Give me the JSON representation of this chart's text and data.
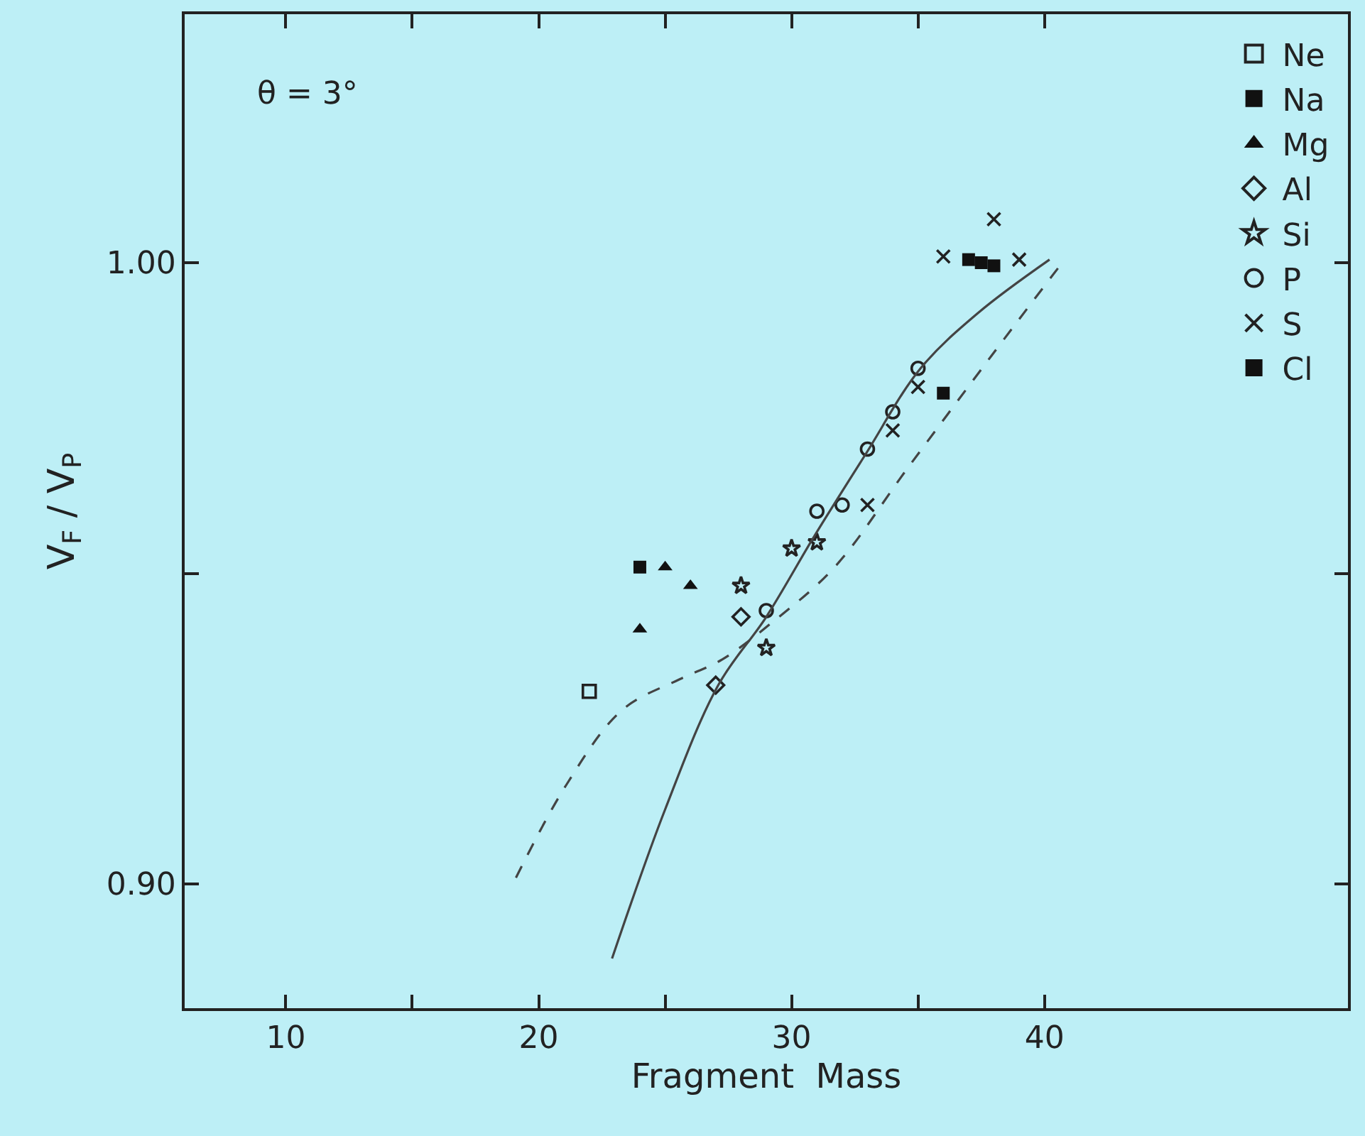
{
  "chart_data": {
    "type": "scatter",
    "xlabel": "Fragment  Mass",
    "ylabel": "V$_{F}$ / V$_{P}$",
    "annotations": [
      "θ = 3°"
    ],
    "xlim": [
      6,
      52
    ],
    "xticks": [
      10,
      {
        "value": 15,
        "label": null
      },
      20,
      {
        "value": 25,
        "label": null
      },
      30,
      {
        "value": 35,
        "label": null
      },
      40
    ],
    "ylim": [
      0.88,
      1.04
    ],
    "yticks": [
      {
        "value": 0.9,
        "label": "0.90"
      },
      {
        "value": 0.95,
        "label": null
      },
      {
        "value": 1.0,
        "label": "1.00"
      }
    ],
    "grid": false,
    "legend": "top right",
    "series": [
      {
        "name": "Ne",
        "color": "#222222",
        "marker": "square-open",
        "x": [
          22
        ],
        "values": [
          0.931
        ]
      },
      {
        "name": "Na",
        "color": "#111111",
        "marker": "square",
        "x": [
          24
        ],
        "values": [
          0.951
        ]
      },
      {
        "name": "Mg",
        "color": "#111111",
        "marker": "triangle",
        "x": [
          24,
          25,
          26
        ],
        "values": [
          0.941,
          0.951,
          0.948
        ]
      },
      {
        "name": "Al",
        "color": "#222222",
        "marker": "diamond-open",
        "x": [
          27,
          28
        ],
        "values": [
          0.932,
          0.943
        ]
      },
      {
        "name": "Si",
        "color": "#222222",
        "marker": "star-open",
        "x": [
          28,
          29,
          30,
          31
        ],
        "values": [
          0.948,
          0.938,
          0.954,
          0.955
        ]
      },
      {
        "name": "P",
        "color": "#222222",
        "marker": "circle-open",
        "x": [
          29,
          31,
          32,
          33,
          34,
          35
        ],
        "values": [
          0.944,
          0.96,
          0.961,
          0.97,
          0.976,
          0.983
        ]
      },
      {
        "name": "S",
        "color": "#222222",
        "marker": "cross",
        "x": [
          33,
          34,
          35,
          36,
          38,
          39
        ],
        "values": [
          0.961,
          0.973,
          0.98,
          1.001,
          1.007,
          1.0005
        ]
      },
      {
        "name": "Cl",
        "color": "#111111",
        "marker": "square",
        "x": [
          36,
          37,
          37.5,
          38
        ],
        "values": [
          0.979,
          1.0005,
          1.0,
          0.9995
        ]
      },
      {
        "type": "line",
        "color": "#444444",
        "line_style": "solid",
        "marker": "none",
        "x": [
          22.9,
          25.0,
          27.1,
          29.0,
          30.9,
          32.9,
          35.1,
          37.4,
          40.2
        ],
        "values": [
          0.888,
          0.912,
          0.932,
          0.943,
          0.956,
          0.969,
          0.983,
          0.992,
          1.0005
        ]
      },
      {
        "type": "line",
        "color": "#444444",
        "line_style": "dashed",
        "marker": "none",
        "x": [
          19.1,
          21.1,
          23.3,
          25.6,
          27.2,
          29.2,
          31.7,
          34.6,
          37.9,
          40.7
        ],
        "values": [
          0.901,
          0.916,
          0.928,
          0.933,
          0.936,
          0.942,
          0.951,
          0.967,
          0.985,
          1.0
        ]
      }
    ]
  }
}
